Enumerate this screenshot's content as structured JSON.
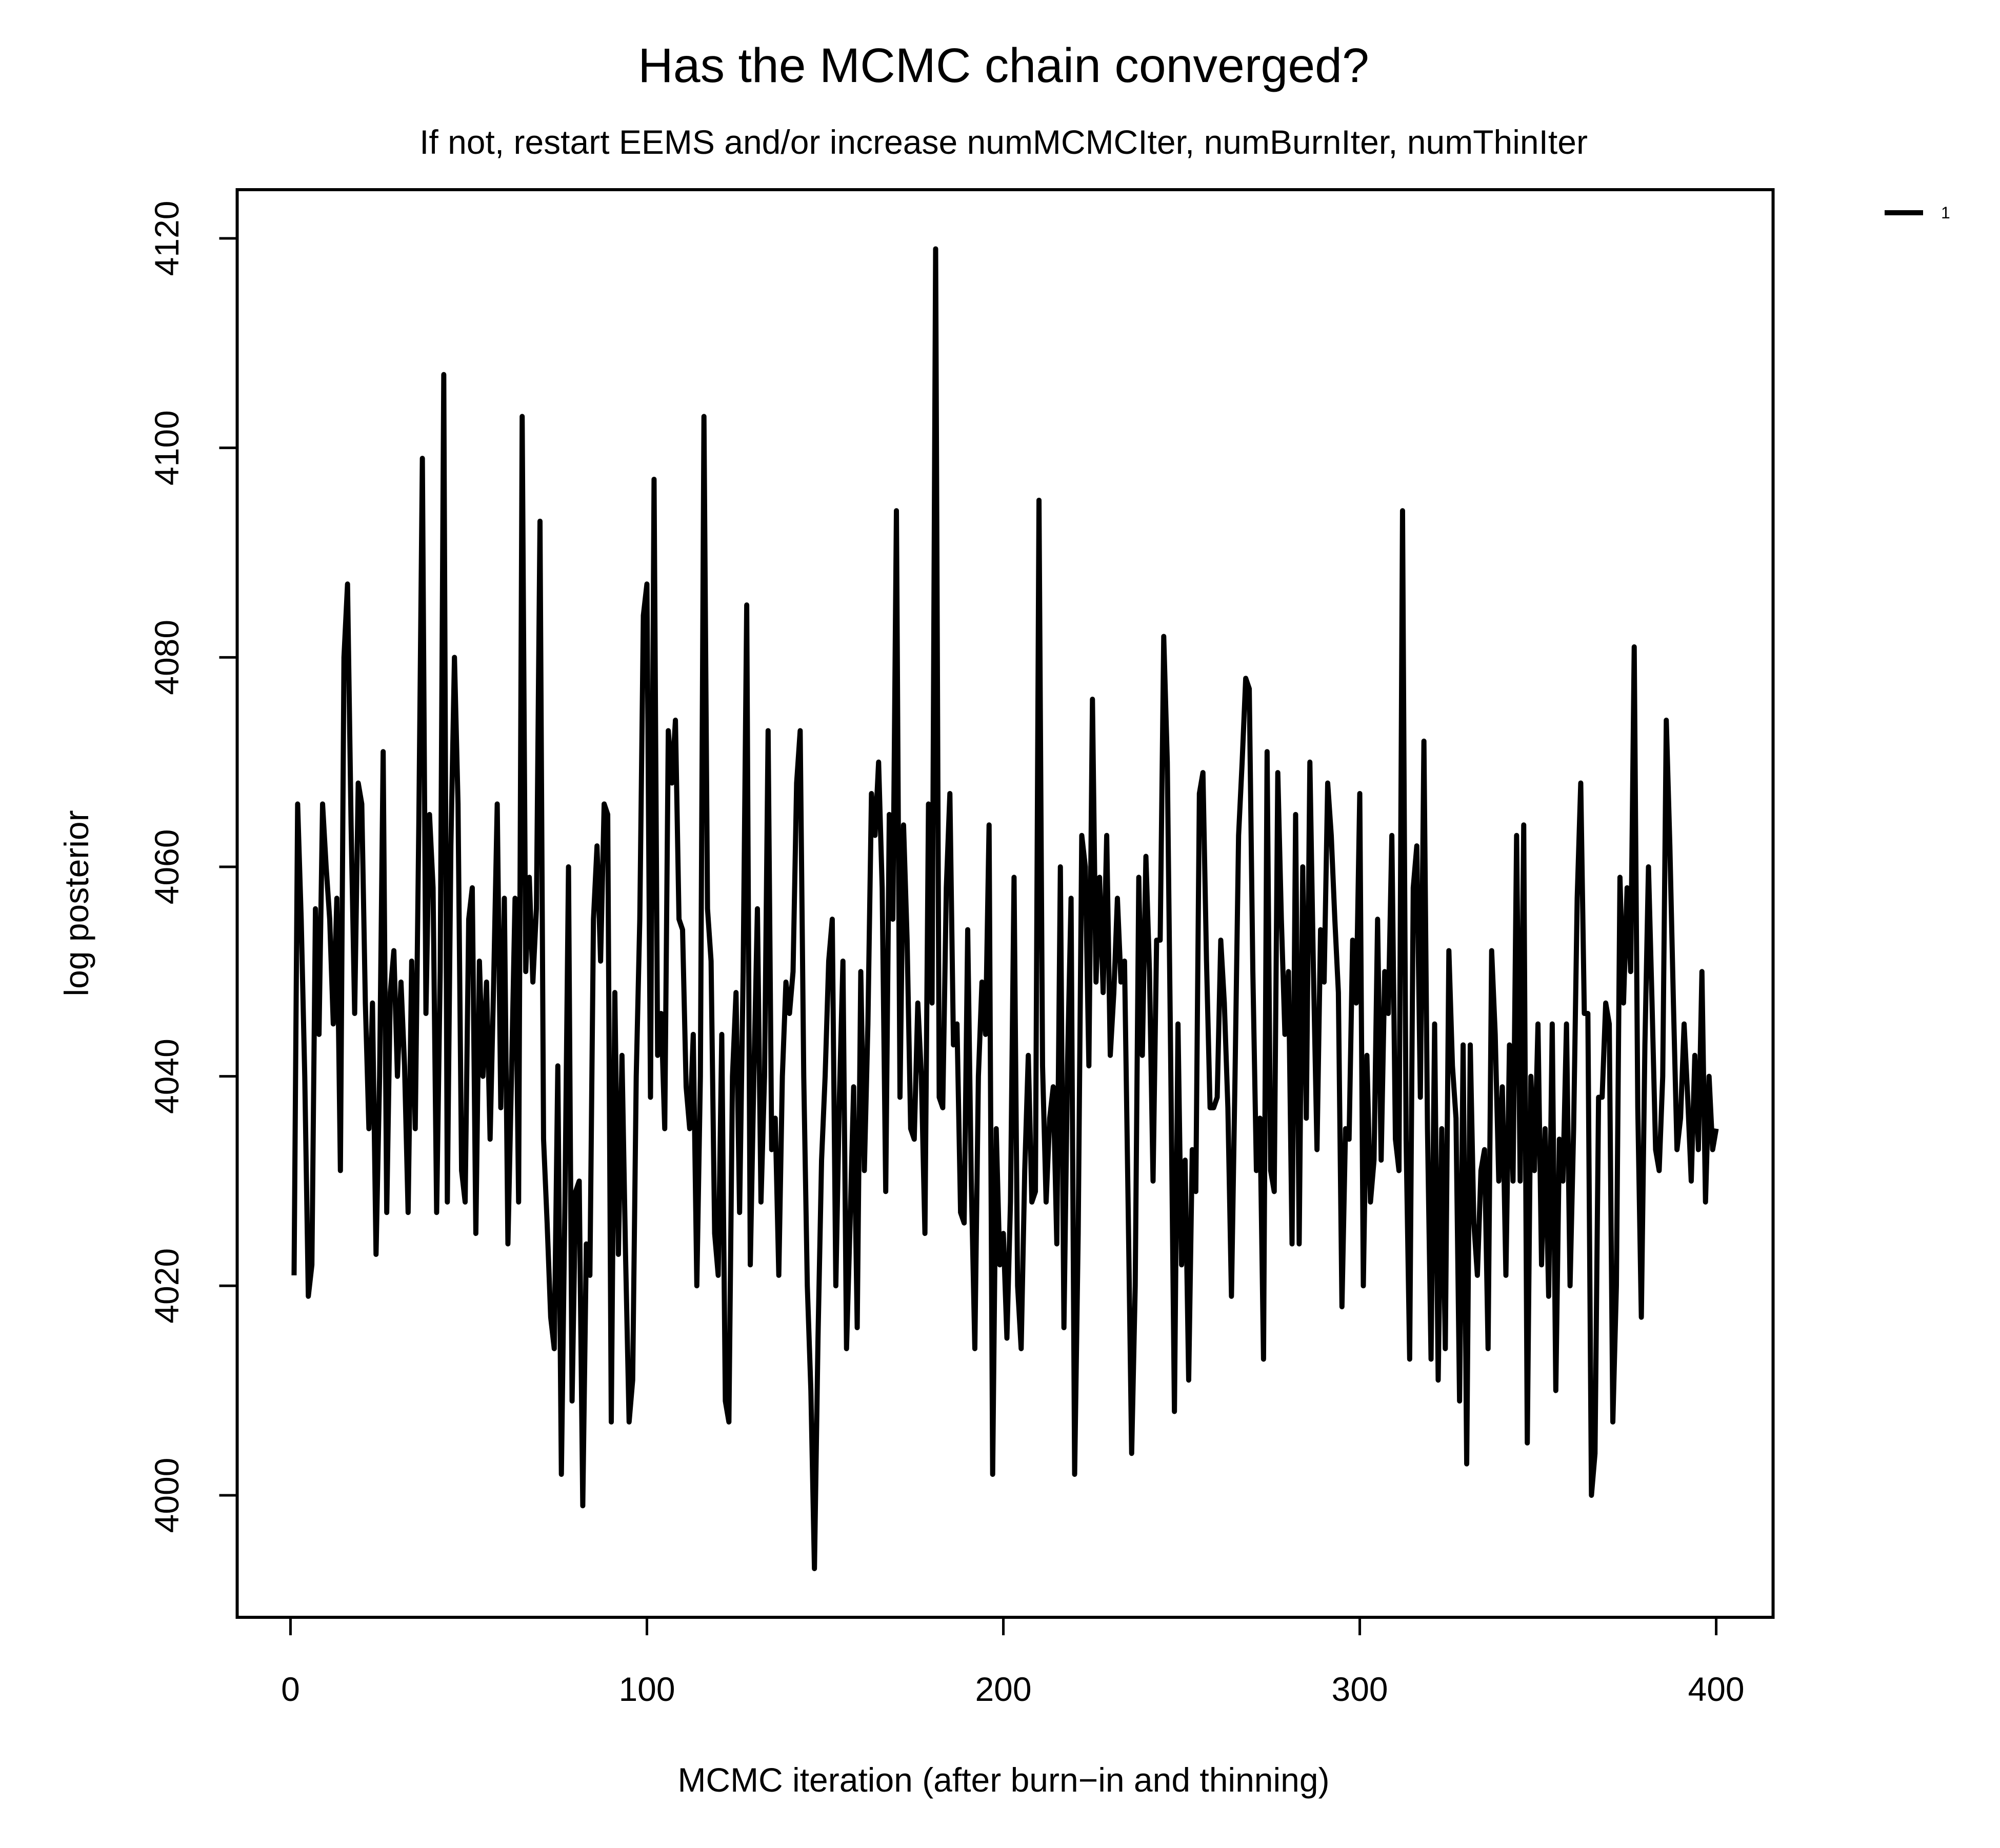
{
  "chart_data": {
    "type": "line",
    "title": "Has the MCMC chain converged?",
    "subtitle": "If not, restart EEMS and/or increase numMCMCIter, numBurnIter, numThinIter",
    "xlabel": "MCMC iteration  (after burn−in and thinning)",
    "ylabel": "log posterior",
    "x": [
      1,
      2,
      3,
      4,
      5,
      6,
      7,
      8,
      9,
      10,
      11,
      12,
      13,
      14,
      15,
      16,
      17,
      18,
      19,
      20,
      21,
      22,
      23,
      24,
      25,
      26,
      27,
      28,
      29,
      30,
      31,
      32,
      33,
      34,
      35,
      36,
      37,
      38,
      39,
      40,
      41,
      42,
      43,
      44,
      45,
      46,
      47,
      48,
      49,
      50,
      51,
      52,
      53,
      54,
      55,
      56,
      57,
      58,
      59,
      60,
      61,
      62,
      63,
      64,
      65,
      66,
      67,
      68,
      69,
      70,
      71,
      72,
      73,
      74,
      75,
      76,
      77,
      78,
      79,
      80,
      81,
      82,
      83,
      84,
      85,
      86,
      87,
      88,
      89,
      90,
      91,
      92,
      93,
      94,
      95,
      96,
      97,
      98,
      99,
      100,
      101,
      102,
      103,
      104,
      105,
      106,
      107,
      108,
      109,
      110,
      111,
      112,
      113,
      114,
      115,
      116,
      117,
      118,
      119,
      120,
      121,
      122,
      123,
      124,
      125,
      126,
      127,
      128,
      129,
      130,
      131,
      132,
      133,
      134,
      135,
      136,
      137,
      138,
      139,
      140,
      141,
      142,
      143,
      144,
      145,
      146,
      147,
      148,
      149,
      150,
      151,
      152,
      153,
      154,
      155,
      156,
      157,
      158,
      159,
      160,
      161,
      162,
      163,
      164,
      165,
      166,
      167,
      168,
      169,
      170,
      171,
      172,
      173,
      174,
      175,
      176,
      177,
      178,
      179,
      180,
      181,
      182,
      183,
      184,
      185,
      186,
      187,
      188,
      189,
      190,
      191,
      192,
      193,
      194,
      195,
      196,
      197,
      198,
      199,
      200,
      201,
      202,
      203,
      204,
      205,
      206,
      207,
      208,
      209,
      210,
      211,
      212,
      213,
      214,
      215,
      216,
      217,
      218,
      219,
      220,
      221,
      222,
      223,
      224,
      225,
      226,
      227,
      228,
      229,
      230,
      231,
      232,
      233,
      234,
      235,
      236,
      237,
      238,
      239,
      240,
      241,
      242,
      243,
      244,
      245,
      246,
      247,
      248,
      249,
      250,
      251,
      252,
      253,
      254,
      255,
      256,
      257,
      258,
      259,
      260,
      261,
      262,
      263,
      264,
      265,
      266,
      267,
      268,
      269,
      270,
      271,
      272,
      273,
      274,
      275,
      276,
      277,
      278,
      279,
      280,
      281,
      282,
      283,
      284,
      285,
      286,
      287,
      288,
      289,
      290,
      291,
      292,
      293,
      294,
      295,
      296,
      297,
      298,
      299,
      300,
      301,
      302,
      303,
      304,
      305,
      306,
      307,
      308,
      309,
      310,
      311,
      312,
      313,
      314,
      315,
      316,
      317,
      318,
      319,
      320,
      321,
      322,
      323,
      324,
      325,
      326,
      327,
      328,
      329,
      330,
      331,
      332,
      333,
      334,
      335,
      336,
      337,
      338,
      339,
      340,
      341,
      342,
      343,
      344,
      345,
      346,
      347,
      348,
      349,
      350,
      351,
      352,
      353,
      354,
      355,
      356,
      357,
      358,
      359,
      360,
      361,
      362,
      363,
      364,
      365,
      366,
      367,
      368,
      369,
      370,
      371,
      372,
      373,
      374,
      375,
      376,
      377,
      378,
      379,
      380,
      381,
      382,
      383,
      384,
      385,
      386,
      387,
      388,
      389,
      390,
      391,
      392,
      393,
      394,
      395,
      396,
      397,
      398,
      399,
      400
    ],
    "series": [
      {
        "name": "1",
        "color": "#000000",
        "values": [
          4021,
          4066,
          4055,
          4040,
          4019,
          4022,
          4056,
          4044,
          4066,
          4060,
          4055,
          4045,
          4057,
          4031,
          4080,
          4087,
          4064,
          4046,
          4068,
          4066,
          4047,
          4035,
          4047,
          4023,
          4040,
          4071,
          4027,
          4048,
          4052,
          4040,
          4049,
          4041,
          4027,
          4051,
          4035,
          4064,
          4099,
          4046,
          4065,
          4058,
          4027,
          4050,
          4107,
          4028,
          4062,
          4080,
          4066,
          4031,
          4028,
          4055,
          4058,
          4025,
          4051,
          4040,
          4049,
          4034,
          4049,
          4066,
          4037,
          4057,
          4024,
          4040,
          4057,
          4028,
          4103,
          4050,
          4059,
          4049,
          4056,
          4093,
          4034,
          4026,
          4017,
          4014,
          4041,
          4002,
          4028,
          4060,
          4009,
          4029,
          4030,
          3999,
          4024,
          4021,
          4055,
          4062,
          4051,
          4066,
          4065,
          4007,
          4048,
          4023,
          4042,
          4023,
          4007,
          4011,
          4040,
          4055,
          4084,
          4087,
          4038,
          4097,
          4042,
          4046,
          4035,
          4073,
          4068,
          4074,
          4055,
          4054,
          4039,
          4035,
          4044,
          4020,
          4040,
          4103,
          4056,
          4051,
          4025,
          4021,
          4044,
          4009,
          4007,
          4040,
          4048,
          4027,
          4050,
          4085,
          4022,
          4040,
          4056,
          4028,
          4040,
          4073,
          4033,
          4036,
          4021,
          4040,
          4049,
          4046,
          4050,
          4068,
          4073,
          4040,
          4020,
          4010,
          3993,
          4015,
          4032,
          4040,
          4051,
          4055,
          4020,
          4038,
          4051,
          4014,
          4026,
          4039,
          4016,
          4050,
          4031,
          4045,
          4067,
          4063,
          4070,
          4058,
          4029,
          4065,
          4055,
          4094,
          4038,
          4064,
          4053,
          4035,
          4034,
          4047,
          4040,
          4025,
          4066,
          4047,
          4119,
          4038,
          4037,
          4058,
          4067,
          4043,
          4045,
          4027,
          4026,
          4054,
          4030,
          4014,
          4040,
          4049,
          4044,
          4064,
          4002,
          4035,
          4022,
          4025,
          4015,
          4028,
          4059,
          4020,
          4014,
          4031,
          4042,
          4028,
          4029,
          4095,
          4041,
          4028,
          4036,
          4039,
          4024,
          4060,
          4016,
          4041,
          4057,
          4002,
          4025,
          4063,
          4060,
          4041,
          4076,
          4049,
          4059,
          4048,
          4063,
          4042,
          4048,
          4057,
          4049,
          4051,
          4028,
          4004,
          4020,
          4059,
          4042,
          4061,
          4050,
          4030,
          4053,
          4053,
          4082,
          4070,
          4040,
          4008,
          4045,
          4022,
          4032,
          4011,
          4033,
          4029,
          4067,
          4069,
          4051,
          4037,
          4037,
          4038,
          4053,
          4047,
          4037,
          4019,
          4040,
          4063,
          4070,
          4078,
          4077,
          4050,
          4031,
          4036,
          4013,
          4071,
          4031,
          4029,
          4069,
          4055,
          4044,
          4050,
          4024,
          4065,
          4024,
          4060,
          4036,
          4070,
          4050,
          4033,
          4054,
          4049,
          4068,
          4063,
          4055,
          4048,
          4018,
          4035,
          4034,
          4053,
          4047,
          4067,
          4020,
          4042,
          4028,
          4032,
          4055,
          4032,
          4050,
          4046,
          4063,
          4034,
          4031,
          4094,
          4034,
          4013,
          4058,
          4062,
          4038,
          4072,
          4035,
          4013,
          4045,
          4011,
          4035,
          4014,
          4052,
          4041,
          4036,
          4009,
          4043,
          4003,
          4043,
          4026,
          4021,
          4031,
          4033,
          4014,
          4052,
          4044,
          4030,
          4039,
          4021,
          4043,
          4030,
          4063,
          4030,
          4064,
          4005,
          4040,
          4031,
          4045,
          4022,
          4035,
          4019,
          4045,
          4010,
          4034,
          4030,
          4045,
          4020,
          4035,
          4057,
          4068,
          4046,
          4046,
          4000,
          4004,
          4038,
          4038,
          4047,
          4045,
          4007,
          4020,
          4059,
          4047,
          4058,
          4050,
          4081,
          4037,
          4017,
          4043,
          4060,
          4047,
          4033,
          4031,
          4040,
          4074,
          4062,
          4047,
          4033,
          4036,
          4045,
          4038,
          4030,
          4042,
          4033,
          4050,
          4028,
          4040,
          4033,
          4035
        ]
      }
    ],
    "xlim": [
      -14.96,
      415.96
    ],
    "ylim": [
      3988.35,
      4124.65
    ],
    "xticks": [
      0,
      100,
      200,
      300,
      400
    ],
    "yticks": [
      4000,
      4020,
      4040,
      4060,
      4080,
      4100,
      4120
    ],
    "legend": "right"
  }
}
